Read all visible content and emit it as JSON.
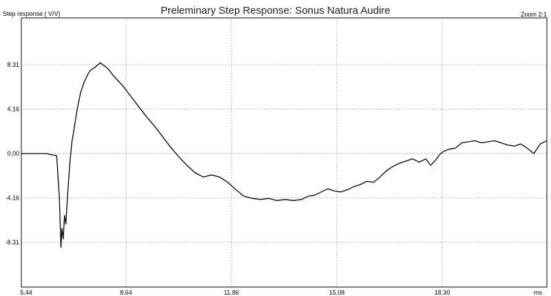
{
  "chart_data": {
    "type": "line",
    "title": "Preleminary Step Response: Sonus Natura Audire",
    "ylabel": "Step response ( V/V)",
    "xunit": "ms",
    "zoom_label": "Zoom 2:1",
    "xlim": [
      5.44,
      21.5
    ],
    "ylim": [
      -12.5,
      12.7
    ],
    "x_ticks": [
      5.44,
      8.64,
      11.86,
      15.08,
      18.3
    ],
    "x_tick_labels": [
      "5.44",
      "8.64",
      "11.86",
      "15.08",
      "18.30"
    ],
    "y_ticks": [
      8.31,
      4.16,
      0.0,
      -4.16,
      -8.31
    ],
    "y_tick_labels": [
      "8.31",
      "4.16",
      "0.00",
      "-4.16",
      "-8.31"
    ],
    "grid": true,
    "series": [
      {
        "color": "#000000",
        "x": [
          5.44,
          6.2,
          6.52,
          6.6,
          6.65,
          6.68,
          6.72,
          6.76,
          6.8,
          6.85,
          6.92,
          6.98,
          7.05,
          7.15,
          7.25,
          7.35,
          7.45,
          7.55,
          7.7,
          7.85,
          7.98,
          8.1,
          8.25,
          8.4,
          8.55,
          8.7,
          8.85,
          9.05,
          9.25,
          9.5,
          9.75,
          10.0,
          10.25,
          10.5,
          10.75,
          11.0,
          11.25,
          11.5,
          11.75,
          12.0,
          12.25,
          12.5,
          12.75,
          13.0,
          13.25,
          13.5,
          13.75,
          14.0,
          14.2,
          14.4,
          14.6,
          14.8,
          15.0,
          15.2,
          15.4,
          15.6,
          15.8,
          16.0,
          16.2,
          16.4,
          16.6,
          16.8,
          17.0,
          17.2,
          17.4,
          17.6,
          17.8,
          17.95,
          18.1,
          18.25,
          18.35,
          18.5,
          18.7,
          18.9,
          19.1,
          19.3,
          19.5,
          19.7,
          19.9,
          20.1,
          20.3,
          20.5,
          20.7,
          20.9,
          21.1,
          21.3,
          21.5
        ],
        "y": [
          0.0,
          0.0,
          -0.2,
          -4.0,
          -8.8,
          -7.0,
          -8.0,
          -5.8,
          -6.6,
          -4.0,
          -1.0,
          1.0,
          2.3,
          4.2,
          5.7,
          6.6,
          7.3,
          7.8,
          8.1,
          8.5,
          8.2,
          7.9,
          7.3,
          6.8,
          6.3,
          5.7,
          5.1,
          4.3,
          3.5,
          2.6,
          1.6,
          0.6,
          -0.3,
          -1.1,
          -1.8,
          -2.2,
          -2.0,
          -2.2,
          -2.7,
          -3.4,
          -4.0,
          -4.2,
          -4.3,
          -4.2,
          -4.4,
          -4.3,
          -4.4,
          -4.3,
          -4.0,
          -3.9,
          -3.6,
          -3.3,
          -3.5,
          -3.6,
          -3.4,
          -3.1,
          -2.9,
          -2.6,
          -2.7,
          -2.2,
          -1.6,
          -1.2,
          -0.9,
          -0.7,
          -0.5,
          -0.8,
          -0.5,
          -1.1,
          -0.6,
          0.0,
          0.2,
          0.4,
          0.5,
          1.0,
          1.1,
          1.2,
          1.0,
          1.1,
          1.2,
          1.0,
          0.8,
          0.7,
          0.9,
          0.5,
          0.0,
          0.9,
          1.2
        ]
      }
    ]
  }
}
